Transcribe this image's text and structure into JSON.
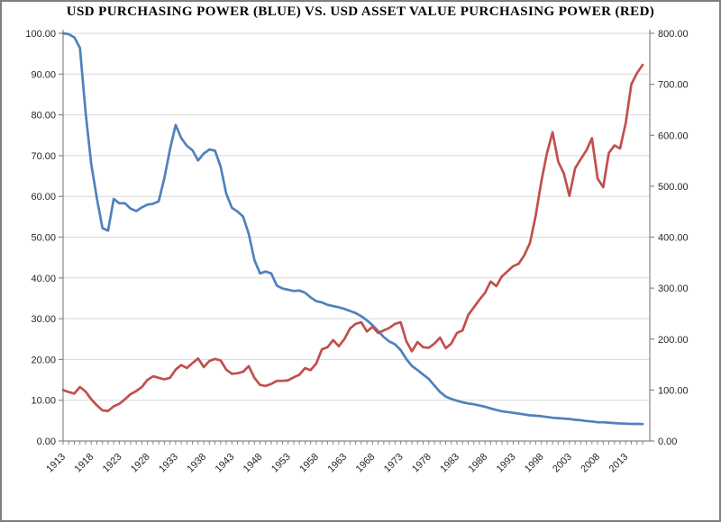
{
  "chart_data": {
    "type": "line",
    "title": "USD PURCHASING POWER (BLUE) VS. USD ASSET VALUE PURCHASING POWER (RED)",
    "grid": "horizontal-only",
    "legend": "none (series identified by color in title)",
    "x": [
      1913,
      1914,
      1915,
      1916,
      1917,
      1918,
      1919,
      1920,
      1921,
      1922,
      1923,
      1924,
      1925,
      1926,
      1927,
      1928,
      1929,
      1930,
      1931,
      1932,
      1933,
      1934,
      1935,
      1936,
      1937,
      1938,
      1939,
      1940,
      1941,
      1942,
      1943,
      1944,
      1945,
      1946,
      1947,
      1948,
      1949,
      1950,
      1951,
      1952,
      1953,
      1954,
      1955,
      1956,
      1957,
      1958,
      1959,
      1960,
      1961,
      1962,
      1963,
      1964,
      1965,
      1966,
      1967,
      1968,
      1969,
      1970,
      1971,
      1972,
      1973,
      1974,
      1975,
      1976,
      1977,
      1978,
      1979,
      1980,
      1981,
      1982,
      1983,
      1984,
      1985,
      1986,
      1987,
      1988,
      1989,
      1990,
      1991,
      1992,
      1993,
      1994,
      1995,
      1996,
      1997,
      1998,
      1999,
      2000,
      2001,
      2002,
      2003,
      2004,
      2005,
      2006,
      2007,
      2008,
      2009,
      2010,
      2011,
      2012,
      2013,
      2014,
      2015,
      2016
    ],
    "series": [
      {
        "name": "USD Purchasing Power",
        "axis": "left",
        "color": "#4F81BD",
        "values": [
          100,
          99.8,
          99,
          96.4,
          80.5,
          68,
          59.5,
          52.2,
          51.6,
          59.4,
          58.3,
          58.3,
          57,
          56.4,
          57.3,
          58,
          58.2,
          58.8,
          64.5,
          71.5,
          77.5,
          74.3,
          72.4,
          71.3,
          68.8,
          70.5,
          71.5,
          71.2,
          67.3,
          60.7,
          57.2,
          56.3,
          55,
          50.8,
          44.4,
          41.1,
          41.6,
          41.1,
          38.1,
          37.4,
          37.1,
          36.8,
          36.9,
          36.4,
          35.2,
          34.3,
          34,
          33.4,
          33.1,
          32.8,
          32.4,
          31.9,
          31.4,
          30.6,
          29.6,
          28.4,
          27,
          25.5,
          24.4,
          23.7,
          22.3,
          20.1,
          18.4,
          17.4,
          16.3,
          15.2,
          13.6,
          12,
          10.9,
          10.3,
          9.9,
          9.5,
          9.2,
          9,
          8.7,
          8.4,
          8,
          7.6,
          7.3,
          7.1,
          6.9,
          6.7,
          6.5,
          6.3,
          6.2,
          6.1,
          5.9,
          5.7,
          5.6,
          5.5,
          5.4,
          5.2,
          5.1,
          4.9,
          4.8,
          4.6,
          4.6,
          4.5,
          4.4,
          4.3,
          4.25,
          4.2,
          4.2,
          4.15
        ]
      },
      {
        "name": "USD Asset Value Purchasing Power",
        "axis": "right",
        "color": "#C0504D",
        "values": [
          100,
          96,
          93,
          106,
          97,
          82,
          70,
          60,
          59,
          68,
          73,
          82,
          92,
          98,
          106,
          120,
          127,
          124,
          121,
          124,
          140,
          149,
          143,
          153,
          162,
          145,
          157,
          161,
          158,
          140,
          132,
          133,
          136,
          147,
          124,
          110,
          108,
          112,
          118,
          118,
          119,
          125,
          130,
          143,
          139,
          152,
          180,
          184,
          198,
          186,
          200,
          221,
          230,
          233,
          215,
          224,
          212,
          217,
          222,
          230,
          233,
          196,
          176,
          194,
          184,
          183,
          191,
          203,
          182,
          191,
          212,
          217,
          247,
          262,
          277,
          291,
          313,
          304,
          323,
          333,
          343,
          348,
          365,
          389,
          442,
          509,
          565,
          606,
          548,
          525,
          481,
          535,
          553,
          570,
          594,
          515,
          498,
          565,
          580,
          574,
          624,
          700,
          722,
          738
        ]
      }
    ],
    "left_axis": {
      "min": 0,
      "max": 100,
      "step": 10,
      "tick_labels": [
        "100.00",
        "90.00",
        "80.00",
        "70.00",
        "60.00",
        "50.00",
        "40.00",
        "30.00",
        "20.00",
        "10.00",
        "0.00"
      ]
    },
    "right_axis": {
      "min": 0,
      "max": 800,
      "step": 100,
      "tick_labels": [
        "800.00",
        "700.00",
        "600.00",
        "500.00",
        "400.00",
        "300.00",
        "200.00",
        "100.00",
        "0.00"
      ]
    },
    "x_axis": {
      "first_year": 1913,
      "label_step": 5,
      "minor_tick_every": 1,
      "tick_labels": [
        "1913",
        "1918",
        "1923",
        "1928",
        "1933",
        "1938",
        "1943",
        "1948",
        "1953",
        "1958",
        "1963",
        "1968",
        "1973",
        "1978",
        "1983",
        "1988",
        "1993",
        "1998",
        "2003",
        "2008",
        "2013"
      ]
    }
  },
  "colors": {
    "background": "#FFFFFF",
    "frame_border": "#7F7F7F",
    "gridline": "#D9D9D9",
    "axis_line": "#868686",
    "tick_label_text": "#262626",
    "title_text": "#000000",
    "blue_series": "#4F81BD",
    "red_series": "#C0504D"
  }
}
